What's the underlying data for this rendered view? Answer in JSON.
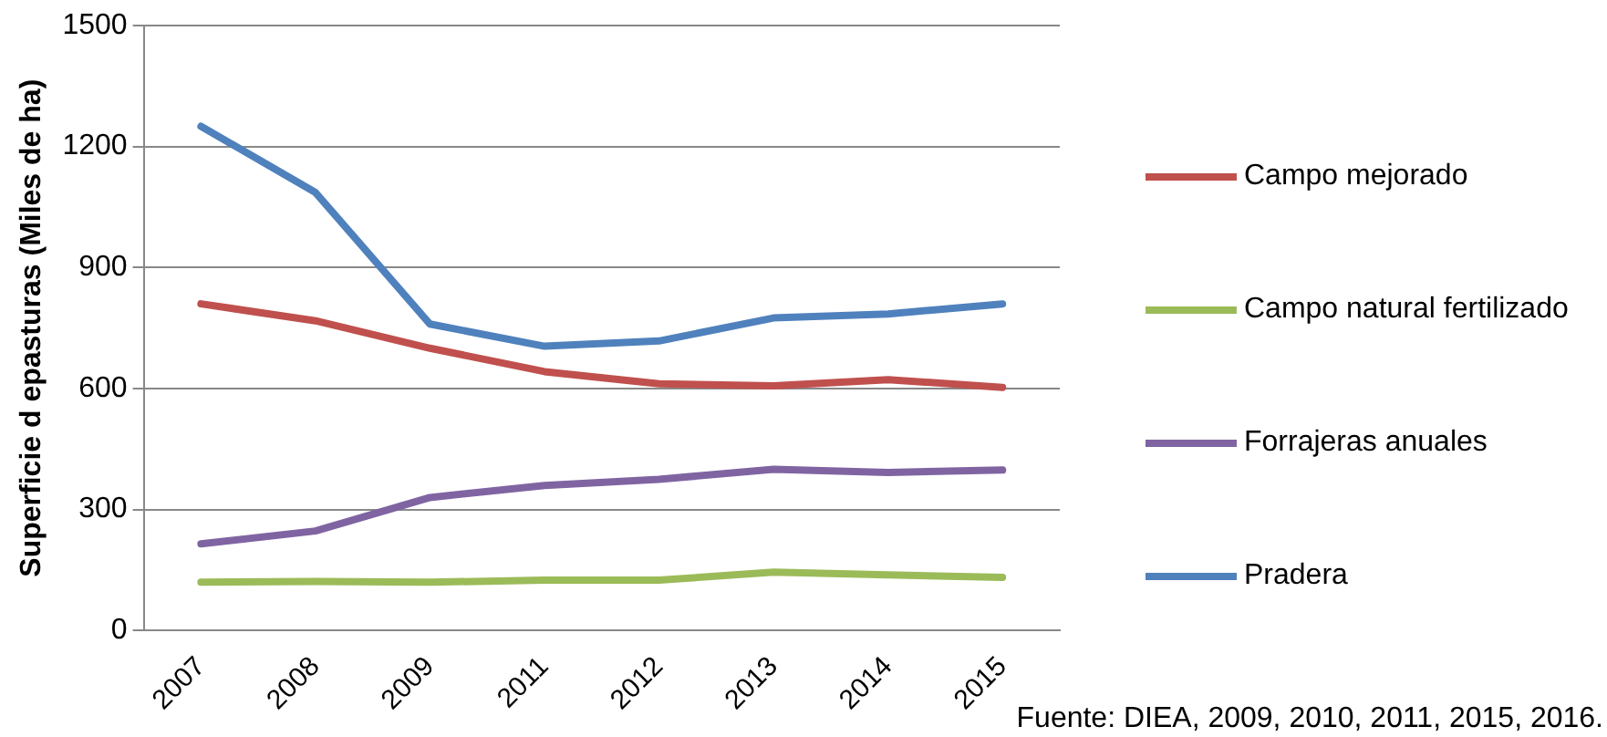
{
  "chart_data": {
    "type": "line",
    "ylabel": "Superficie d epasturas (Miles de ha)",
    "categories": [
      "2007",
      "2008",
      "2009",
      "2011",
      "2012",
      "2013",
      "2014",
      "2015"
    ],
    "ylim": [
      0,
      1500
    ],
    "yticks": [
      0,
      300,
      600,
      900,
      1200,
      1500
    ],
    "grid": "y",
    "legend": "right",
    "marker": "none",
    "line_style": "solid",
    "series": [
      {
        "name": "Campo mejorado",
        "color": "#c0504d",
        "values": [
          810,
          768,
          700,
          642,
          612,
          607,
          622,
          603
        ]
      },
      {
        "name": "Campo natural fertilizado",
        "color": "#9bbb59",
        "values": [
          120,
          122,
          120,
          125,
          125,
          145,
          138,
          132
        ]
      },
      {
        "name": "Forrajeras anuales",
        "color": "#8064a2",
        "values": [
          215,
          247,
          330,
          360,
          375,
          400,
          392,
          398
        ]
      },
      {
        "name": "Pradera",
        "color": "#4f81bd",
        "values": [
          1250,
          1086,
          760,
          705,
          718,
          775,
          785,
          810
        ]
      }
    ],
    "annotations": [
      "Fuente: DIEA, 2009, 2010, 2011, 2015, 2016."
    ]
  }
}
